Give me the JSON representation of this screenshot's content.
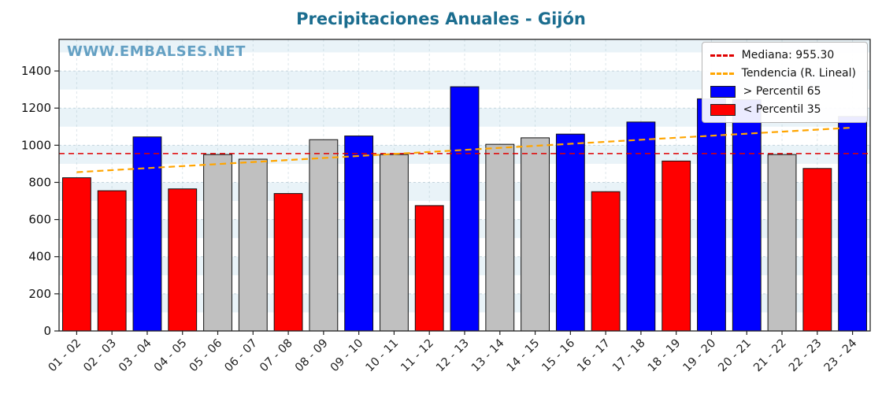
{
  "title": "Precipitaciones Anuales - Gijón",
  "watermark": "WWW.EMBALSES.NET",
  "legend": [
    {
      "label": "Mediana: 955.30",
      "type": "line",
      "color": "#e00000"
    },
    {
      "label": "Tendencia (R. Lineal)",
      "type": "line",
      "color": "#ffa500"
    },
    {
      "label": "> Percentil 65",
      "type": "patch",
      "color": "#0000ff"
    },
    {
      "label": "< Percentil 35",
      "type": "patch",
      "color": "#ff0000"
    }
  ],
  "chart_data": {
    "type": "bar",
    "title": "Precipitaciones Anuales - Gijón",
    "categories": [
      "01 - 02",
      "02 - 03",
      "03 - 04",
      "04 - 05",
      "05 - 06",
      "06 - 07",
      "07 - 08",
      "08 - 09",
      "09 - 10",
      "10 - 11",
      "11 - 12",
      "12 - 13",
      "13 - 14",
      "14 - 15",
      "15 - 16",
      "16 - 17",
      "17 - 18",
      "18 - 19",
      "19 - 20",
      "20 - 21",
      "21 - 22",
      "22 - 23",
      "23 - 24"
    ],
    "values": [
      825,
      755,
      1045,
      765,
      950,
      925,
      740,
      1030,
      1050,
      950,
      675,
      1315,
      1005,
      1040,
      1060,
      750,
      1125,
      915,
      1250,
      1245,
      950,
      875,
      1155
    ],
    "bar_classes": [
      "red",
      "red",
      "blue",
      "red",
      "gray",
      "gray",
      "red",
      "gray",
      "blue",
      "gray",
      "red",
      "blue",
      "gray",
      "gray",
      "blue",
      "red",
      "blue",
      "red",
      "blue",
      "blue",
      "gray",
      "red",
      "blue"
    ],
    "colors": {
      "blue": "#0000ff",
      "red": "#ff0000",
      "gray": "#c0c0c0"
    },
    "median": 955.3,
    "trend": {
      "start": 855,
      "end": 1095
    },
    "ylim": [
      0,
      1570
    ],
    "yticks": [
      0,
      200,
      400,
      600,
      800,
      1000,
      1200,
      1400
    ],
    "grid": true,
    "legend_position": "upper right",
    "xlabel": "",
    "ylabel": ""
  }
}
